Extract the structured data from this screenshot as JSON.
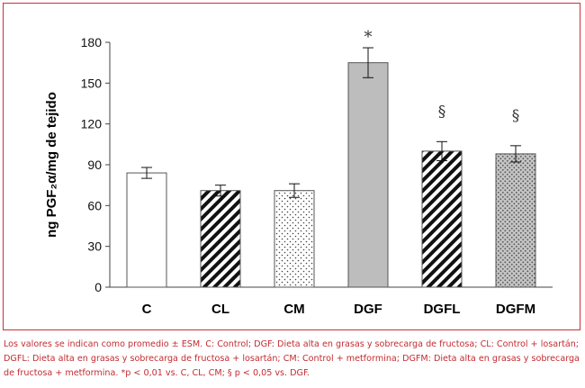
{
  "chart_data": {
    "type": "bar",
    "title": "",
    "xlabel": "",
    "ylabel": "ng PGF₂α/mg de tejido",
    "categories": [
      "C",
      "CL",
      "CM",
      "DGF",
      "DGFL",
      "DGFM"
    ],
    "values": [
      84,
      71,
      71,
      165,
      100,
      98
    ],
    "errors": [
      4,
      4,
      5,
      11,
      7,
      6
    ],
    "annotations": [
      "",
      "",
      "",
      "*",
      "§",
      "§"
    ],
    "ylim": [
      0,
      180
    ],
    "yticks": [
      0,
      30,
      60,
      90,
      120,
      150,
      180
    ],
    "grid": false,
    "patterns": [
      "white",
      "diagonal-stripes",
      "dots",
      "solid-gray",
      "diagonal-stripes",
      "dots-gray"
    ]
  },
  "caption": "Los valores se indican como promedio ± ESM. C: Control; DGF: Dieta alta en grasas y sobrecarga de fructosa; CL: Control + losartán; DGFL: Dieta alta en grasas y sobrecarga de fructosa + losartán; CM: Control + metformina; DGFM: Dieta alta en grasas y sobrecarga de fructosa + metformina. *p < 0,01 vs. C, CL, CM; § p < 0,05 vs. DGF.",
  "colors": {
    "border": "#c8333a",
    "caption": "#c42b31",
    "bar_gray": "#bdbdbd",
    "ink": "#000000"
  }
}
